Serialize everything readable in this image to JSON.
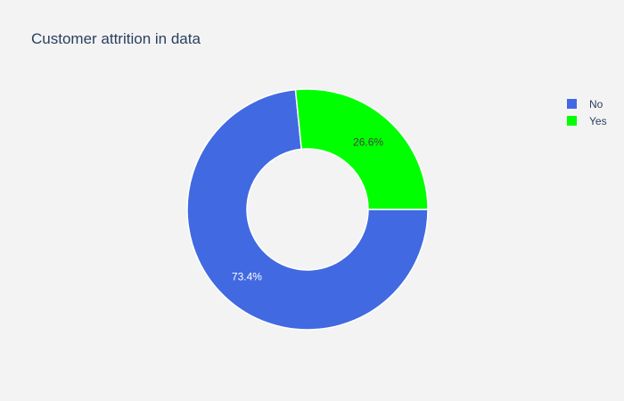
{
  "chart_data": {
    "type": "pie",
    "title": "Customer attrition in data",
    "hole": true,
    "legend_position": "top-right",
    "series": [
      {
        "slices": [
          {
            "label": "No",
            "value": 73.4,
            "value_label": "73.4%",
            "color": "#4169e1",
            "text_color": "#ffffff"
          },
          {
            "label": "Yes",
            "value": 26.6,
            "value_label": "26.6%",
            "color": "#00ff00",
            "text_color": "#444444"
          }
        ]
      }
    ]
  }
}
